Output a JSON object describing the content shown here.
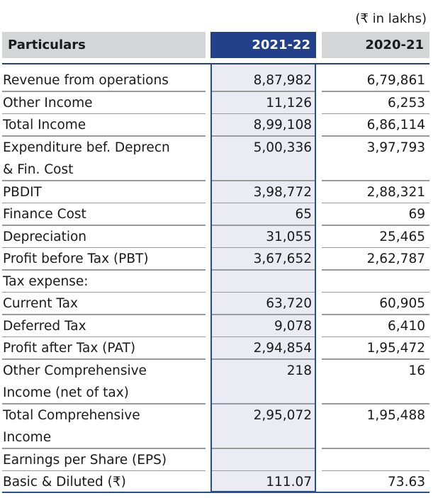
{
  "unit_note": "(₹ in lakhs)",
  "headers": {
    "particulars": "Particulars",
    "y1": "2021-22",
    "y2": "2020-21"
  },
  "rows": [
    {
      "label": "Revenue from operations",
      "y1": "8,87,982",
      "y2": "6,79,861"
    },
    {
      "label": "Other Income",
      "y1": "11,126",
      "y2": "6,253"
    },
    {
      "label": "Total Income",
      "y1": "8,99,108",
      "y2": "6,86,114"
    },
    {
      "label": "Expenditure bef. Deprecn & Fin. Cost",
      "y1": "5,00,336",
      "y2": "3,97,793"
    },
    {
      "label": "PBDIT",
      "y1": "3,98,772",
      "y2": "2,88,321"
    },
    {
      "label": "Finance Cost",
      "y1": "65",
      "y2": "69"
    },
    {
      "label": "Depreciation",
      "y1": "31,055",
      "y2": "25,465"
    },
    {
      "label": "Profit before Tax (PBT)",
      "y1": "3,67,652",
      "y2": "2,62,787"
    },
    {
      "label": "Tax expense:",
      "y1": "",
      "y2": ""
    },
    {
      "label": "Current Tax",
      "y1": "63,720",
      "y2": "60,905"
    },
    {
      "label": "Deferred Tax",
      "y1": "9,078",
      "y2": "6,410"
    },
    {
      "label": "Profit after Tax (PAT)",
      "y1": "2,94,854",
      "y2": "1,95,472"
    },
    {
      "label": "Other Comprehensive Income (net of tax)",
      "y1": "218",
      "y2": "16"
    },
    {
      "label": "Total Comprehensive Income",
      "y1": "2,95,072",
      "y2": "1,95,488"
    },
    {
      "label": "Earnings per Share (EPS)",
      "y1": "",
      "y2": ""
    },
    {
      "label": "Basic & Diluted (₹)",
      "y1": "111.07",
      "y2": "73.63"
    }
  ]
}
